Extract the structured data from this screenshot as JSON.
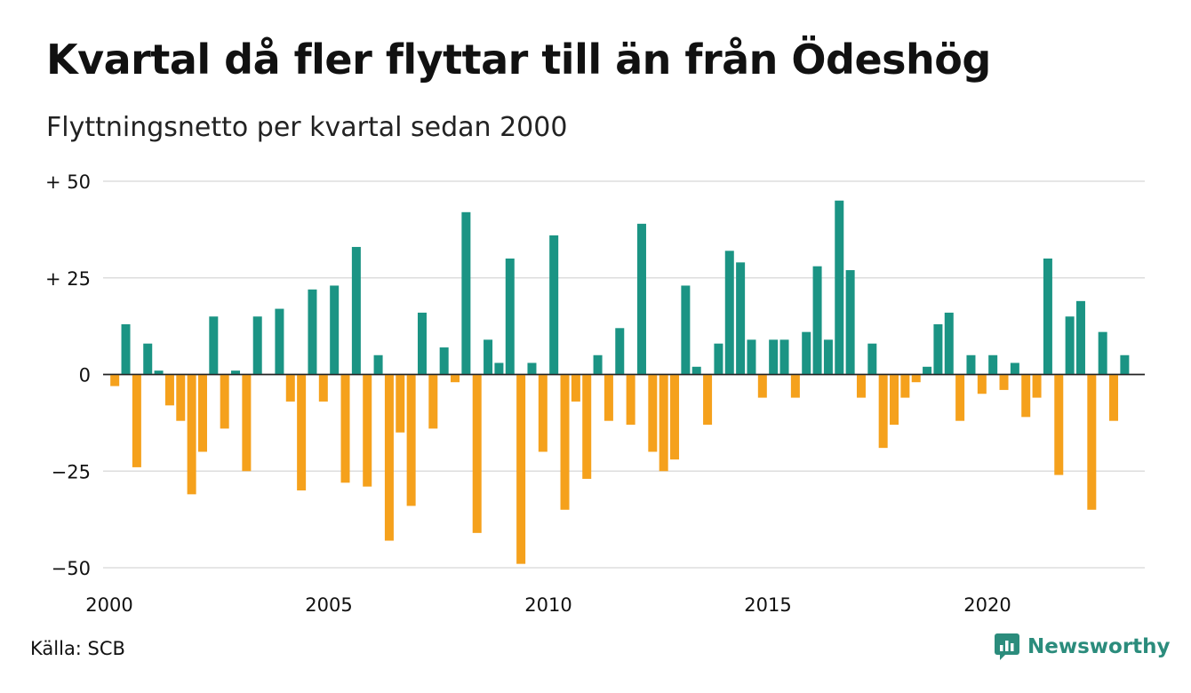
{
  "title": "Kvartal då fler flyttar till än från Ödeshög",
  "subtitle": "Flyttningsnetto per kvartal sedan 2000",
  "source": "Källa: SCB",
  "brand": {
    "name": "Newsworthy",
    "icon": "newsworthy-logo-icon",
    "color": "#2b8c7c"
  },
  "colors": {
    "positive": "#1b9484",
    "negative": "#f5a11c",
    "grid": "#dddddd",
    "axis": "#222222"
  },
  "chart_data": {
    "type": "bar",
    "ylim": [
      -50,
      50
    ],
    "y_ticks": [
      50,
      25,
      0,
      -25,
      -50
    ],
    "y_tick_labels": [
      "+ 50",
      "+ 25",
      "0",
      "−25",
      "−50"
    ],
    "x_tick_labels": [
      "2000",
      "2005",
      "2010",
      "2015",
      "2020"
    ],
    "grid": true,
    "series": [
      {
        "values": [
          -3,
          13,
          -24,
          8,
          1,
          -8,
          -12,
          -31,
          -20,
          15,
          -14,
          1,
          -25,
          15,
          0,
          17,
          -7,
          -30,
          22,
          -7,
          23,
          -28,
          33,
          -29,
          5,
          -43,
          -15,
          -34,
          16,
          -14,
          7,
          -2,
          42,
          -41,
          9,
          3,
          30,
          -49,
          3,
          -20,
          36,
          -35,
          -7,
          -27,
          5,
          -12,
          12,
          -13,
          39,
          -20,
          -25,
          -22,
          23,
          2,
          -13,
          8,
          32,
          29,
          9,
          -6,
          9,
          9,
          -6,
          11,
          28,
          9,
          45,
          27,
          -6,
          8,
          -19,
          -13,
          -6,
          -2,
          2,
          13,
          16,
          -12,
          5,
          -5,
          5,
          -4,
          3,
          -11,
          -6,
          30,
          -26,
          15,
          19,
          -35,
          11,
          -12,
          5
        ]
      }
    ]
  }
}
